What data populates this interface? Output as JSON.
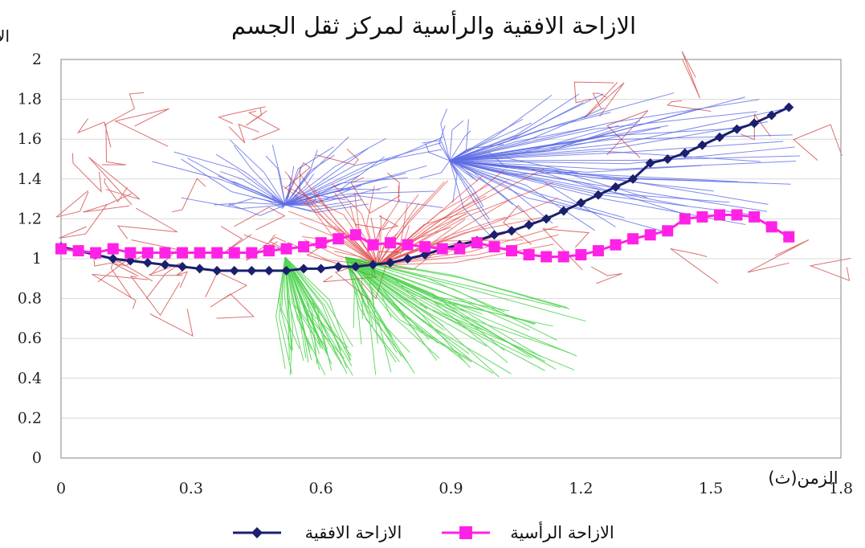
{
  "chart_data": {
    "type": "line",
    "title": "الازاحة الافقية والرأسية لمركز ثقل الجسم",
    "ylabel": "الازاحة (متر)",
    "xlabel": "الزمن(ث)",
    "xlim": [
      0,
      1.8
    ],
    "ylim": [
      0,
      2
    ],
    "x_ticks": [
      "0",
      "0.3",
      "0.6",
      "0.9",
      "1.2",
      "1.5",
      "1.8"
    ],
    "y_ticks": [
      "0",
      "0.2",
      "0.4",
      "0.6",
      "0.8",
      "1",
      "1.2",
      "1.4",
      "1.6",
      "1.8",
      "2"
    ],
    "grid": true,
    "legend_position": "bottom",
    "series": [
      {
        "name": "الازاحة الافقية",
        "color": "#1a1f6e",
        "marker": "diamond",
        "x": [
          0,
          0.04,
          0.08,
          0.12,
          0.16,
          0.2,
          0.24,
          0.28,
          0.32,
          0.36,
          0.4,
          0.44,
          0.48,
          0.52,
          0.56,
          0.6,
          0.64,
          0.68,
          0.72,
          0.76,
          0.8,
          0.84,
          0.88,
          0.92,
          0.96,
          1.0,
          1.04,
          1.08,
          1.12,
          1.16,
          1.2,
          1.24,
          1.28,
          1.32,
          1.36,
          1.4,
          1.44,
          1.48,
          1.52,
          1.56,
          1.6,
          1.64,
          1.68
        ],
        "values": [
          1.06,
          1.04,
          1.02,
          1.0,
          0.99,
          0.98,
          0.97,
          0.96,
          0.95,
          0.94,
          0.94,
          0.94,
          0.94,
          0.94,
          0.95,
          0.95,
          0.96,
          0.96,
          0.97,
          0.98,
          1.0,
          1.02,
          1.05,
          1.07,
          1.09,
          1.12,
          1.14,
          1.17,
          1.2,
          1.24,
          1.28,
          1.32,
          1.36,
          1.4,
          1.48,
          1.5,
          1.53,
          1.57,
          1.61,
          1.65,
          1.68,
          1.72,
          1.76
        ]
      },
      {
        "name": "الازاحة الرأسية",
        "color": "#ff22e6",
        "marker": "square",
        "x": [
          0,
          0.04,
          0.08,
          0.12,
          0.16,
          0.2,
          0.24,
          0.28,
          0.32,
          0.36,
          0.4,
          0.44,
          0.48,
          0.52,
          0.56,
          0.6,
          0.64,
          0.68,
          0.72,
          0.76,
          0.8,
          0.84,
          0.88,
          0.92,
          0.96,
          1.0,
          1.04,
          1.08,
          1.12,
          1.16,
          1.2,
          1.24,
          1.28,
          1.32,
          1.36,
          1.4,
          1.44,
          1.48,
          1.52,
          1.56,
          1.6,
          1.64,
          1.68
        ],
        "values": [
          1.05,
          1.04,
          1.03,
          1.05,
          1.03,
          1.03,
          1.03,
          1.03,
          1.03,
          1.03,
          1.03,
          1.03,
          1.04,
          1.05,
          1.06,
          1.08,
          1.1,
          1.12,
          1.07,
          1.08,
          1.07,
          1.06,
          1.05,
          1.05,
          1.08,
          1.06,
          1.04,
          1.02,
          1.01,
          1.01,
          1.02,
          1.04,
          1.07,
          1.1,
          1.12,
          1.14,
          1.2,
          1.21,
          1.22,
          1.22,
          1.21,
          1.16,
          1.11
        ]
      }
    ]
  }
}
